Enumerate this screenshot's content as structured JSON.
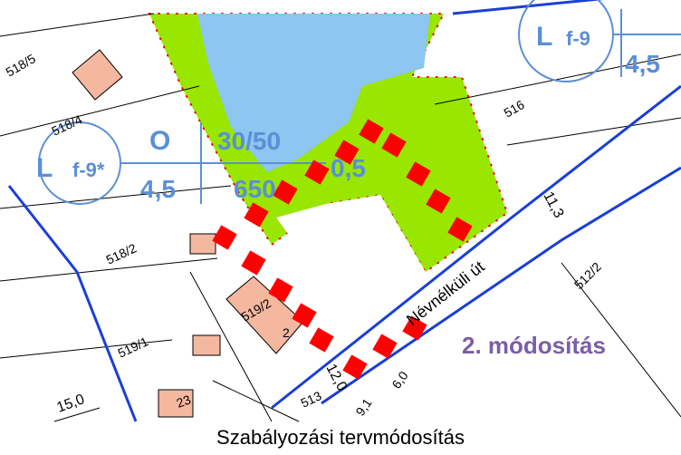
{
  "map": {
    "labels": [
      "518/5",
      "518/4",
      "L",
      "f-9*",
      "O",
      "30/50",
      "4,5",
      "650",
      "0,5",
      "L",
      "f-9",
      "4,5",
      "516",
      "518/2",
      "Névnélküli út",
      "11,3",
      "512/2",
      "519/2",
      "2",
      "519/1",
      "2. módosítás",
      "15,0",
      "23",
      "513",
      "12,0",
      "6,0",
      "9,1"
    ],
    "caption": "Szabályozási tervmódosítás"
  }
}
